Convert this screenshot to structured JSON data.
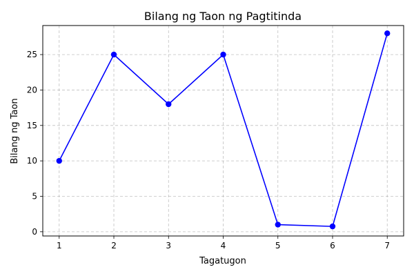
{
  "chart_data": {
    "type": "line",
    "title": "Bilang ng Taon ng Pagtitinda",
    "xlabel": "Tagatugon",
    "ylabel": "Bilang ng Taon",
    "x": [
      1,
      2,
      3,
      4,
      5,
      6,
      7
    ],
    "series": [
      {
        "values": [
          10,
          25,
          18,
          25,
          1,
          0.75,
          28
        ],
        "color": "#0000ff",
        "marker": "circle"
      }
    ],
    "xlim": [
      0.7,
      7.3
    ],
    "ylim": [
      -0.6,
      29.1
    ],
    "xticks": [
      1,
      2,
      3,
      4,
      5,
      6,
      7
    ],
    "yticks": [
      0,
      5,
      10,
      15,
      20,
      25
    ],
    "grid": true,
    "legend": "none"
  }
}
